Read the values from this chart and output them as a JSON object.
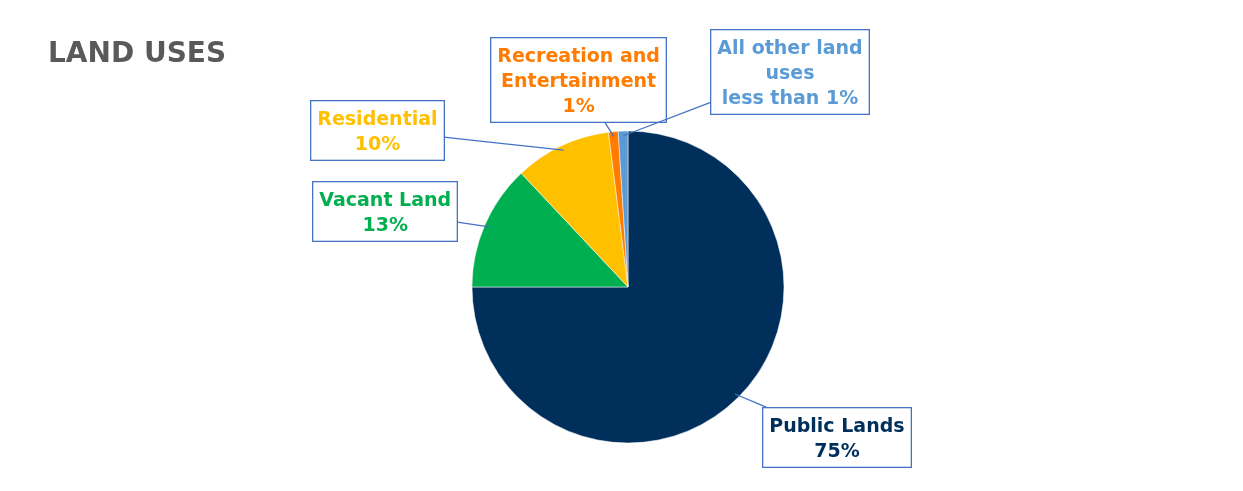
{
  "chart_data": {
    "type": "pie",
    "title": "LAND USES",
    "categories": [
      "Public Lands",
      "Vacant Land",
      "Residential",
      "Recreation and Entertainment",
      "All other land uses"
    ],
    "values": [
      75,
      13,
      10,
      1,
      1
    ],
    "colors": [
      "#002f5c",
      "#00b050",
      "#ffc000",
      "#ff7c00",
      "#5b9bd5"
    ],
    "value_labels": [
      "75%",
      "13%",
      "10%",
      "1%",
      "less than 1%"
    ],
    "legend": false
  }
}
